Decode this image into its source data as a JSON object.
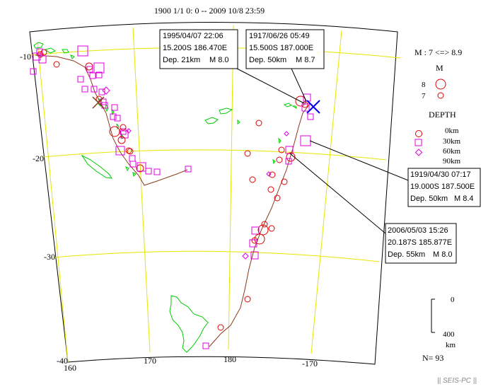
{
  "title": "1900 1/1 0: 0 -- 2009 10/8 23:59",
  "credit": "|| SEIS-PC ||",
  "count_label": "N= 93",
  "magnitude_legend": {
    "range": "M : 7 <=> 8.9",
    "heading": "M",
    "items": [
      {
        "label": "8"
      },
      {
        "label": "7"
      }
    ]
  },
  "depth_legend": {
    "heading": "DEPTH",
    "items": [
      {
        "label": "0km",
        "shape": "circle"
      },
      {
        "label": "30km",
        "shape": "square"
      },
      {
        "label": "60km",
        "shape": "diamond"
      },
      {
        "label": "90km",
        "shape": "diamond"
      }
    ]
  },
  "depth_scale": {
    "top": "0",
    "bottom": "400",
    "unit": "km"
  },
  "axes": {
    "lat_labels": [
      "-10",
      "-20",
      "-30",
      "-40"
    ],
    "lon_labels": [
      "160",
      "170",
      "180",
      "-170"
    ]
  },
  "callouts": [
    {
      "date": "1995/04/07 22:06",
      "coords": "15.200S 186.470E",
      "dep": "Dep. 21km",
      "mag": "M 8.0"
    },
    {
      "date": "1917/06/26 05:49",
      "coords": "15.500S 187.000E",
      "dep": "Dep. 50km",
      "mag": "M 8.7"
    },
    {
      "date": "1919/04/30 07:17",
      "coords": "19.000S 187.500E",
      "dep": "Dep. 50km",
      "mag": "M 8.4"
    },
    {
      "date": "2006/05/03 15:26",
      "coords": "20.187S 185.877E",
      "dep": "Dep. 55km",
      "mag": "M 8.0"
    }
  ],
  "colors": {
    "frame": "#000000",
    "grid": "#e6e600",
    "land": "#00cc00",
    "trench": "#8b3a1a",
    "shallow": "#e00000",
    "intermediate": "#e000e0",
    "highlight": "#0000ee"
  }
}
